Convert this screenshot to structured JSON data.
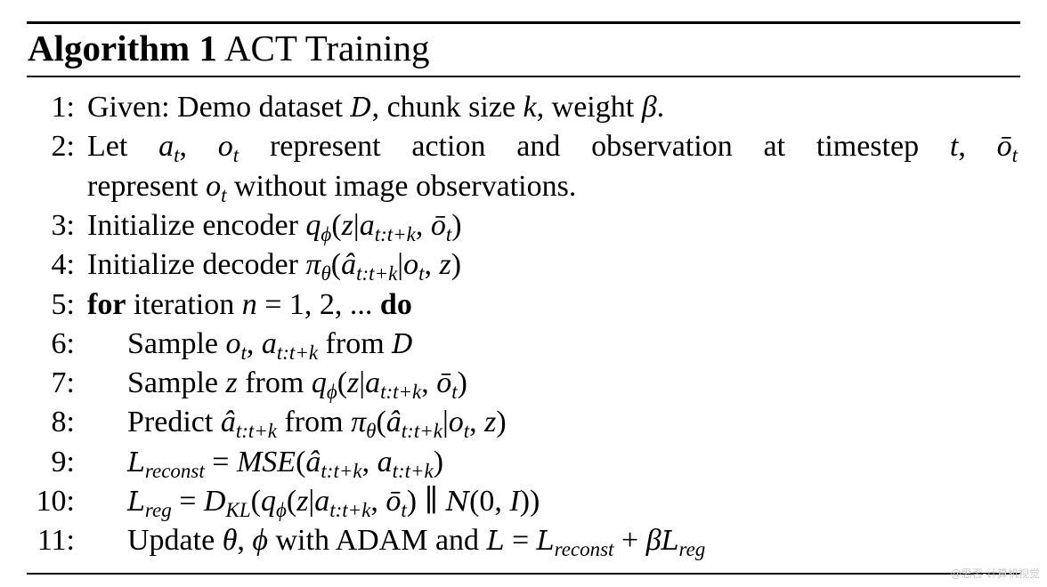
{
  "algorithm": {
    "label": "Algorithm 1",
    "title": "ACT Training",
    "lines": [
      {
        "num": "1:",
        "indent": false,
        "seg": [
          [
            "rm",
            "Given: Demo dataset "
          ],
          [
            "cal",
            "D"
          ],
          [
            "rm",
            ", chunk size "
          ],
          [
            "it",
            "k"
          ],
          [
            "rm",
            ", weight "
          ],
          [
            "it",
            "β"
          ],
          [
            "rm",
            "."
          ]
        ]
      },
      {
        "num": "2:",
        "indent": false,
        "justify": true,
        "seg": [
          [
            "rm",
            "Let "
          ],
          [
            "it",
            "a"
          ],
          [
            "sub",
            "t"
          ],
          [
            "rm",
            ", "
          ],
          [
            "it",
            "o"
          ],
          [
            "sub",
            "t"
          ],
          [
            "rm",
            " represent action and observation at timestep "
          ],
          [
            "it",
            "t"
          ],
          [
            "rm",
            ", "
          ],
          [
            "it",
            "ō"
          ],
          [
            "sub",
            "t"
          ]
        ]
      },
      {
        "num": "",
        "indent": false,
        "seg": [
          [
            "rm",
            "represent "
          ],
          [
            "it",
            "o"
          ],
          [
            "sub",
            "t"
          ],
          [
            "rm",
            " without image observations."
          ]
        ]
      },
      {
        "num": "3:",
        "indent": false,
        "seg": [
          [
            "rm",
            "Initialize encoder "
          ],
          [
            "it",
            "q"
          ],
          [
            "sub",
            "ϕ"
          ],
          [
            "rm",
            "("
          ],
          [
            "it",
            "z"
          ],
          [
            "rm",
            "|"
          ],
          [
            "it",
            "a"
          ],
          [
            "sub",
            "t:t+k"
          ],
          [
            "rm",
            ", "
          ],
          [
            "it",
            "ō"
          ],
          [
            "sub",
            "t"
          ],
          [
            "rm",
            ")"
          ]
        ]
      },
      {
        "num": "4:",
        "indent": false,
        "seg": [
          [
            "rm",
            "Initialize decoder "
          ],
          [
            "it",
            "π"
          ],
          [
            "sub",
            "θ"
          ],
          [
            "rm",
            "("
          ],
          [
            "it",
            "â"
          ],
          [
            "sub",
            "t:t+k"
          ],
          [
            "rm",
            "|"
          ],
          [
            "it",
            "o"
          ],
          [
            "sub",
            "t"
          ],
          [
            "rm",
            ", "
          ],
          [
            "it",
            "z"
          ],
          [
            "rm",
            ")"
          ]
        ]
      },
      {
        "num": "5:",
        "indent": false,
        "seg": [
          [
            "b",
            "for"
          ],
          [
            "rm",
            " iteration "
          ],
          [
            "it",
            "n"
          ],
          [
            "rm",
            " = 1, 2, ... "
          ],
          [
            "b",
            "do"
          ]
        ]
      },
      {
        "num": "6:",
        "indent": true,
        "seg": [
          [
            "rm",
            "Sample "
          ],
          [
            "it",
            "o"
          ],
          [
            "sub",
            "t"
          ],
          [
            "rm",
            ", "
          ],
          [
            "it",
            "a"
          ],
          [
            "sub",
            "t:t+k"
          ],
          [
            "rm",
            " from "
          ],
          [
            "cal",
            "D"
          ]
        ]
      },
      {
        "num": "7:",
        "indent": true,
        "seg": [
          [
            "rm",
            "Sample "
          ],
          [
            "it",
            "z"
          ],
          [
            "rm",
            " from "
          ],
          [
            "it",
            "q"
          ],
          [
            "sub",
            "ϕ"
          ],
          [
            "rm",
            "("
          ],
          [
            "it",
            "z"
          ],
          [
            "rm",
            "|"
          ],
          [
            "it",
            "a"
          ],
          [
            "sub",
            "t:t+k"
          ],
          [
            "rm",
            ", "
          ],
          [
            "it",
            "ō"
          ],
          [
            "sub",
            "t"
          ],
          [
            "rm",
            ")"
          ]
        ]
      },
      {
        "num": "8:",
        "indent": true,
        "seg": [
          [
            "rm",
            "Predict "
          ],
          [
            "it",
            "â"
          ],
          [
            "sub",
            "t:t+k"
          ],
          [
            "rm",
            " from "
          ],
          [
            "it",
            "π"
          ],
          [
            "sub",
            "θ"
          ],
          [
            "rm",
            "("
          ],
          [
            "it",
            "â"
          ],
          [
            "sub",
            "t:t+k"
          ],
          [
            "rm",
            "|"
          ],
          [
            "it",
            "o"
          ],
          [
            "sub",
            "t"
          ],
          [
            "rm",
            ", "
          ],
          [
            "it",
            "z"
          ],
          [
            "rm",
            ")"
          ]
        ]
      },
      {
        "num": "9:",
        "indent": true,
        "seg": [
          [
            "cal",
            "L"
          ],
          [
            "sub",
            "reconst"
          ],
          [
            "rm",
            " = "
          ],
          [
            "it",
            "MSE"
          ],
          [
            "rm",
            "("
          ],
          [
            "it",
            "â"
          ],
          [
            "sub",
            "t:t+k"
          ],
          [
            "rm",
            ", "
          ],
          [
            "it",
            "a"
          ],
          [
            "sub",
            "t:t+k"
          ],
          [
            "rm",
            ")"
          ]
        ]
      },
      {
        "num": "10:",
        "indent": true,
        "seg": [
          [
            "cal",
            "L"
          ],
          [
            "sub",
            "reg"
          ],
          [
            "rm",
            " = "
          ],
          [
            "it",
            "D"
          ],
          [
            "sub",
            "KL"
          ],
          [
            "rm",
            "("
          ],
          [
            "it",
            "q"
          ],
          [
            "sub",
            "ϕ"
          ],
          [
            "rm",
            "("
          ],
          [
            "it",
            "z"
          ],
          [
            "rm",
            "|"
          ],
          [
            "it",
            "a"
          ],
          [
            "sub",
            "t:t+k"
          ],
          [
            "rm",
            ", "
          ],
          [
            "it",
            "ō"
          ],
          [
            "sub",
            "t"
          ],
          [
            "rm",
            ") ∥ "
          ],
          [
            "cal",
            "N"
          ],
          [
            "rm",
            "(0, "
          ],
          [
            "it",
            "I"
          ],
          [
            "rm",
            "))"
          ]
        ]
      },
      {
        "num": "11:",
        "indent": true,
        "seg": [
          [
            "rm",
            "Update "
          ],
          [
            "it",
            "θ"
          ],
          [
            "rm",
            ", "
          ],
          [
            "it",
            "ϕ"
          ],
          [
            "rm",
            " with ADAM and "
          ],
          [
            "cal",
            "L"
          ],
          [
            "rm",
            " = "
          ],
          [
            "cal",
            "L"
          ],
          [
            "sub",
            "reconst"
          ],
          [
            "rm",
            " + "
          ],
          [
            "it",
            "β"
          ],
          [
            "cal",
            "L"
          ],
          [
            "sub",
            "reg"
          ]
        ]
      }
    ]
  },
  "watermark": "@思否-计算机视觉"
}
